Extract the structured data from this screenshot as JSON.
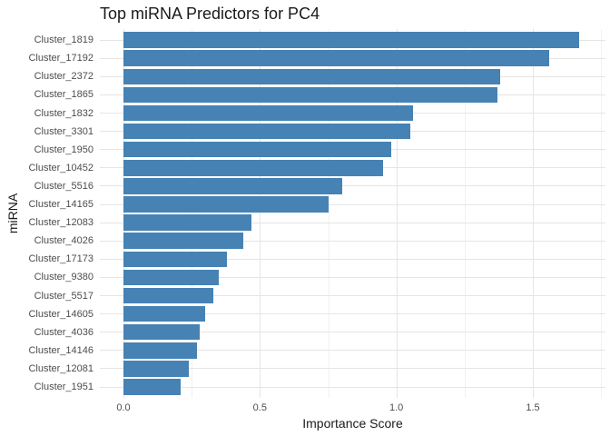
{
  "chart_data": {
    "type": "bar",
    "orientation": "horizontal",
    "title": "Top miRNA Predictors for PC4",
    "xlabel": "Importance Score",
    "ylabel": "miRNA",
    "categories": [
      "Cluster_1819",
      "Cluster_17192",
      "Cluster_2372",
      "Cluster_1865",
      "Cluster_1832",
      "Cluster_3301",
      "Cluster_1950",
      "Cluster_10452",
      "Cluster_5516",
      "Cluster_14165",
      "Cluster_12083",
      "Cluster_4026",
      "Cluster_17173",
      "Cluster_9380",
      "Cluster_5517",
      "Cluster_14605",
      "Cluster_4036",
      "Cluster_14146",
      "Cluster_12081",
      "Cluster_1951"
    ],
    "values": [
      1.67,
      1.56,
      1.38,
      1.37,
      1.06,
      1.05,
      0.98,
      0.95,
      0.8,
      0.75,
      0.47,
      0.44,
      0.38,
      0.35,
      0.33,
      0.3,
      0.28,
      0.27,
      0.24,
      0.21
    ],
    "xlim": [
      0,
      1.77
    ],
    "x_ticks": {
      "values": [
        0.0,
        0.5,
        1.0,
        1.5
      ],
      "labels": [
        "0.0",
        "0.5",
        "1.0",
        "1.5"
      ]
    },
    "x_minor_ticks": [
      0.25,
      0.75,
      1.25,
      1.75
    ],
    "bar_color": "#4682B4",
    "grid": {
      "major_color": "#e5e5e5",
      "minor_color": "#f1f1f1",
      "grid_on": true
    },
    "background": "#ffffff",
    "text_colors": {
      "title": "#1a1a1a",
      "axis_title": "#1a1a1a",
      "tick_label": "#4d4d4d"
    },
    "legend": "none"
  }
}
